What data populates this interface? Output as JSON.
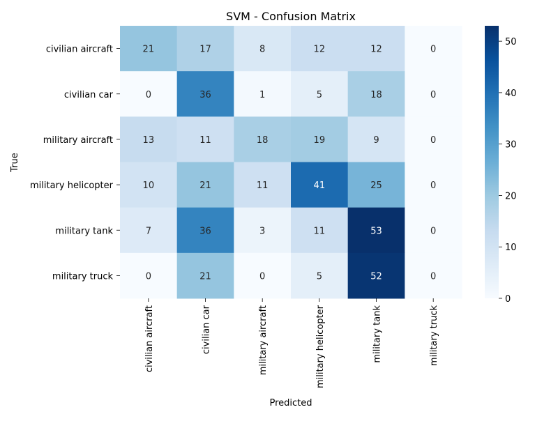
{
  "chart_data": {
    "type": "heatmap",
    "title": "SVM - Confusion Matrix",
    "xlabel": "Predicted",
    "ylabel": "True",
    "row_labels": [
      "civilian aircraft",
      "civilian car",
      "military aircraft",
      "military helicopter",
      "military tank",
      "military truck"
    ],
    "col_labels": [
      "civilian aircraft",
      "civilian car",
      "military aircraft",
      "military helicopter",
      "military tank",
      "military truck"
    ],
    "values": [
      [
        21,
        17,
        8,
        12,
        12,
        0
      ],
      [
        0,
        36,
        1,
        5,
        18,
        0
      ],
      [
        13,
        11,
        18,
        19,
        9,
        0
      ],
      [
        10,
        21,
        11,
        41,
        25,
        0
      ],
      [
        7,
        36,
        3,
        11,
        53,
        0
      ],
      [
        0,
        21,
        0,
        5,
        52,
        0
      ]
    ],
    "colorbar": {
      "min": 0,
      "max": 53,
      "ticks": [
        "0",
        "10",
        "20",
        "30",
        "40",
        "50"
      ],
      "colormap": "Blues",
      "color_low": "#f7fbff",
      "color_high": "#08306b"
    },
    "grid": false
  }
}
